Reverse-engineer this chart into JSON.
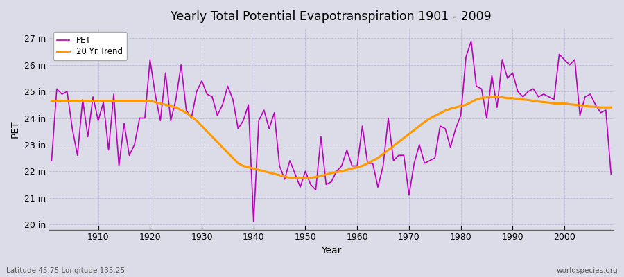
{
  "title": "Yearly Total Potential Evapotranspiration 1901 - 2009",
  "xlabel": "Year",
  "ylabel": "PET",
  "bg_color": "#dcdce8",
  "plot_bg_color": "#dcdce8",
  "pet_color": "#bb00bb",
  "trend_color": "#ff9900",
  "pet_label": "PET",
  "trend_label": "20 Yr Trend",
  "ylim": [
    19.8,
    27.4
  ],
  "xlim": [
    1900.5,
    2009.5
  ],
  "ytick_labels": [
    "20 in",
    "21 in",
    "22 in",
    "23 in",
    "24 in",
    "25 in",
    "26 in",
    "27 in"
  ],
  "ytick_values": [
    20,
    21,
    22,
    23,
    24,
    25,
    26,
    27
  ],
  "xtick_values": [
    1910,
    1920,
    1930,
    1940,
    1950,
    1960,
    1970,
    1980,
    1990,
    2000
  ],
  "footer_left": "Latitude 45.75 Longitude 135.25",
  "footer_right": "worldspecies.org",
  "years": [
    1901,
    1902,
    1903,
    1904,
    1905,
    1906,
    1907,
    1908,
    1909,
    1910,
    1911,
    1912,
    1913,
    1914,
    1915,
    1916,
    1917,
    1918,
    1919,
    1920,
    1921,
    1922,
    1923,
    1924,
    1925,
    1926,
    1927,
    1928,
    1929,
    1930,
    1931,
    1932,
    1933,
    1934,
    1935,
    1936,
    1937,
    1938,
    1939,
    1940,
    1941,
    1942,
    1943,
    1944,
    1945,
    1946,
    1947,
    1948,
    1949,
    1950,
    1951,
    1952,
    1953,
    1954,
    1955,
    1956,
    1957,
    1958,
    1959,
    1960,
    1961,
    1962,
    1963,
    1964,
    1965,
    1966,
    1967,
    1968,
    1969,
    1970,
    1971,
    1972,
    1973,
    1974,
    1975,
    1976,
    1977,
    1978,
    1979,
    1980,
    1981,
    1982,
    1983,
    1984,
    1985,
    1986,
    1987,
    1988,
    1989,
    1990,
    1991,
    1992,
    1993,
    1994,
    1995,
    1996,
    1997,
    1998,
    1999,
    2000,
    2001,
    2002,
    2003,
    2004,
    2005,
    2006,
    2007,
    2008,
    2009
  ],
  "pet_values": [
    22.4,
    25.1,
    24.9,
    25.0,
    23.6,
    22.6,
    24.7,
    23.3,
    24.8,
    23.9,
    24.6,
    22.8,
    24.9,
    22.2,
    23.8,
    22.6,
    23.0,
    24.0,
    24.0,
    26.2,
    24.9,
    23.9,
    25.7,
    23.9,
    24.7,
    26.0,
    24.3,
    24.0,
    25.0,
    25.4,
    24.9,
    24.8,
    24.1,
    24.5,
    25.2,
    24.7,
    23.6,
    23.9,
    24.5,
    20.1,
    23.9,
    24.3,
    23.6,
    24.2,
    22.2,
    21.7,
    22.4,
    21.9,
    21.4,
    22.0,
    21.5,
    21.3,
    23.3,
    21.5,
    21.6,
    22.0,
    22.2,
    22.8,
    22.2,
    22.2,
    23.7,
    22.3,
    22.3,
    21.4,
    22.2,
    24.0,
    22.4,
    22.6,
    22.6,
    21.1,
    22.3,
    23.0,
    22.3,
    22.4,
    22.5,
    23.7,
    23.6,
    22.9,
    23.6,
    24.1,
    26.3,
    26.9,
    25.2,
    25.1,
    24.0,
    25.6,
    24.4,
    26.2,
    25.5,
    25.7,
    25.0,
    24.8,
    25.0,
    25.1,
    24.8,
    24.9,
    24.8,
    24.7,
    26.4,
    26.2,
    26.0,
    26.2,
    24.1,
    24.8,
    24.9,
    24.5,
    24.2,
    24.3,
    21.9
  ],
  "trend_values": [
    24.65,
    24.65,
    24.65,
    24.65,
    24.65,
    24.65,
    24.65,
    24.65,
    24.65,
    24.65,
    24.65,
    24.65,
    24.65,
    24.65,
    24.65,
    24.65,
    24.65,
    24.65,
    24.65,
    24.65,
    24.6,
    24.55,
    24.5,
    24.45,
    24.4,
    24.3,
    24.2,
    24.05,
    23.9,
    23.7,
    23.5,
    23.3,
    23.1,
    22.9,
    22.7,
    22.5,
    22.3,
    22.2,
    22.15,
    22.1,
    22.05,
    22.0,
    21.95,
    21.9,
    21.85,
    21.8,
    21.75,
    21.75,
    21.75,
    21.75,
    21.75,
    21.78,
    21.82,
    21.88,
    21.93,
    21.97,
    22.0,
    22.05,
    22.1,
    22.15,
    22.2,
    22.3,
    22.4,
    22.5,
    22.65,
    22.8,
    22.95,
    23.1,
    23.25,
    23.4,
    23.55,
    23.7,
    23.85,
    23.98,
    24.08,
    24.18,
    24.28,
    24.35,
    24.4,
    24.45,
    24.5,
    24.6,
    24.7,
    24.75,
    24.78,
    24.8,
    24.8,
    24.78,
    24.75,
    24.75,
    24.72,
    24.7,
    24.68,
    24.65,
    24.62,
    24.6,
    24.58,
    24.55,
    24.55,
    24.55,
    24.52,
    24.5,
    24.48,
    24.45,
    24.43,
    24.42,
    24.4,
    24.4,
    24.4
  ]
}
